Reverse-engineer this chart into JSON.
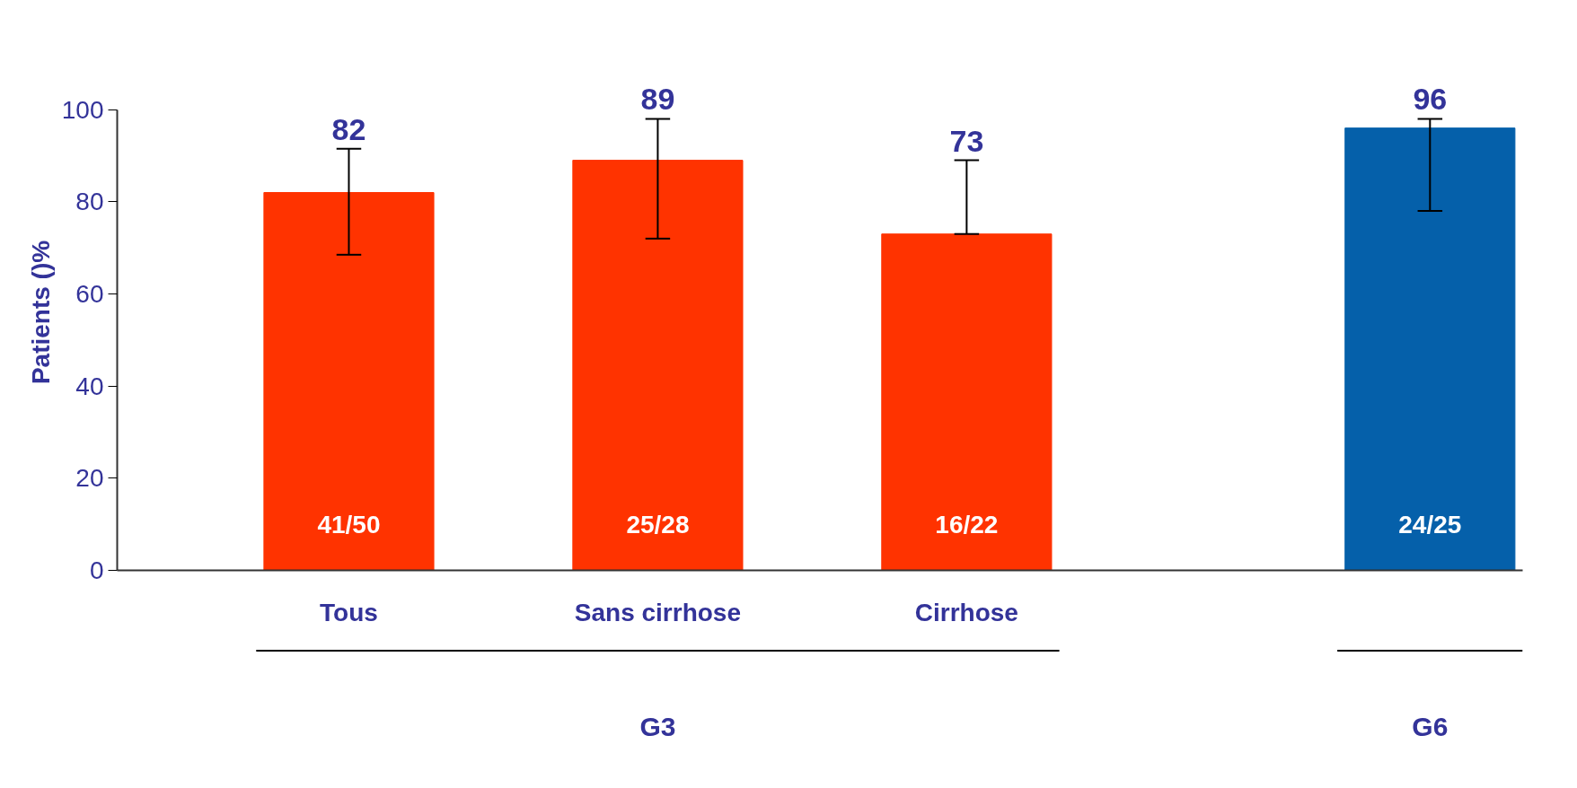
{
  "chart_data": {
    "type": "bar",
    "ylabel": "Patients ()%",
    "categories": [
      "Tous",
      "Sans cirrhose",
      "Cirrhose",
      null
    ],
    "values": [
      82,
      89,
      73,
      96
    ],
    "colors": [
      "#ff3300",
      "#ff3300",
      "#ff3300",
      "#0560aa"
    ],
    "errors": [
      [
        68.5,
        91.5
      ],
      [
        72,
        98
      ],
      [
        73,
        89
      ],
      [
        78,
        98
      ]
    ],
    "data_labels": true,
    "ylim": [
      0,
      100
    ],
    "yticks": [
      0,
      20,
      40,
      60,
      80,
      100
    ],
    "grid": false,
    "annotations": [
      "41/50",
      "25/28",
      "16/22",
      "24/25",
      "G3",
      "G6"
    ]
  }
}
